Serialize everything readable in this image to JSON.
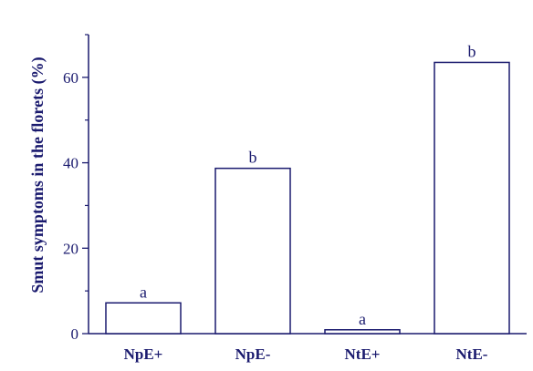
{
  "chart_data": {
    "type": "bar",
    "title": "",
    "xlabel": "",
    "ylabel": "Smut symptoms in the florets (%)",
    "categories": [
      "NpE+",
      "NpE-",
      "NtE+",
      "NtE-"
    ],
    "values": [
      7.2,
      38.7,
      0.9,
      63.5
    ],
    "significance_labels": [
      "a",
      "b",
      "a",
      "b"
    ],
    "ylim": [
      0,
      70
    ],
    "y_ticks": [
      0,
      20,
      40,
      60
    ],
    "y_minor_step": 10,
    "grid": false,
    "legend": "none",
    "colors": {
      "ink": "#1a1a6e",
      "bar_fill": "#ffffff",
      "background": "#ffffff"
    }
  }
}
